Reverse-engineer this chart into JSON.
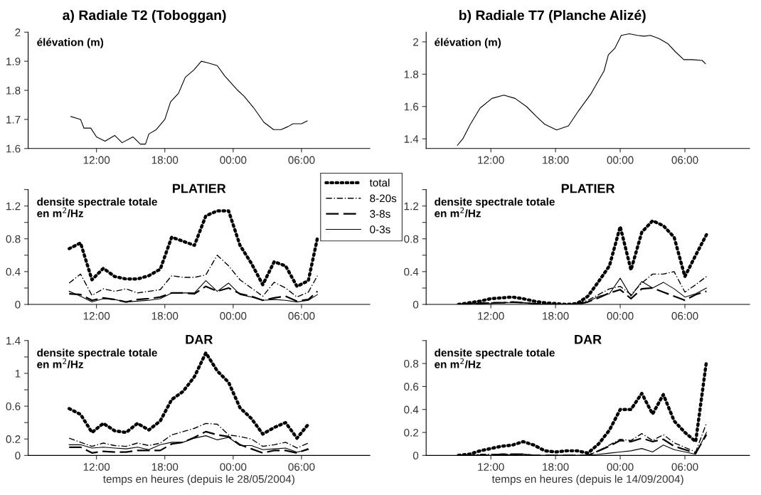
{
  "chart_data": [
    {
      "type": "line",
      "title": "a) Radiale T2 (Toboggan)",
      "ylabel": "élévation (m)",
      "xlim": [
        "2004-05-28T06:00",
        "2004-05-29T12:00"
      ],
      "ylim": [
        1.6,
        2
      ],
      "xticks": [
        {
          "value": "2004-05-28T12:00",
          "label": "12:00"
        },
        {
          "value": "2004-05-28T18:00",
          "label": "18:00"
        },
        {
          "value": "2004-05-29T00:00",
          "label": "00:00"
        },
        {
          "value": "2004-05-29T06:00",
          "label": "06:00"
        }
      ],
      "yticks": [
        1.6,
        1.7,
        1.8,
        1.9,
        2
      ],
      "series": [
        {
          "color": "#000000",
          "line_style": "solid",
          "x": [
            "2004-05-28T09:45",
            "2004-05-28T10:36",
            "2004-05-28T10:54",
            "2004-05-28T11:30",
            "2004-05-28T12:00",
            "2004-05-28T12:45",
            "2004-05-28T13:36",
            "2004-05-28T14:15",
            "2004-05-28T15:12",
            "2004-05-28T15:51",
            "2004-05-28T16:18",
            "2004-05-28T16:36",
            "2004-05-28T17:15",
            "2004-05-28T18:00",
            "2004-05-28T18:30",
            "2004-05-28T19:12",
            "2004-05-28T19:48",
            "2004-05-28T20:33",
            "2004-05-28T21:12",
            "2004-05-28T21:45",
            "2004-05-28T22:36",
            "2004-05-28T23:15",
            "2004-05-29T00:24",
            "2004-05-29T00:57",
            "2004-05-29T01:48",
            "2004-05-29T02:42",
            "2004-05-29T03:33",
            "2004-05-29T04:12",
            "2004-05-29T04:48",
            "2004-05-29T05:15",
            "2004-05-29T06:00",
            "2004-05-29T06:30"
          ],
          "values": [
            1.71,
            1.7,
            1.67,
            1.67,
            1.64,
            1.625,
            1.645,
            1.62,
            1.64,
            1.615,
            1.615,
            1.65,
            1.665,
            1.7,
            1.76,
            1.79,
            1.845,
            1.87,
            1.9,
            1.895,
            1.885,
            1.85,
            1.8,
            1.78,
            1.74,
            1.69,
            1.665,
            1.665,
            1.675,
            1.685,
            1.685,
            1.695
          ]
        }
      ]
    },
    {
      "type": "line",
      "title": "b) Radiale T7 (Planche Alizé)",
      "ylabel": "élévation (m)",
      "xlim": [
        "2004-09-14T06:00",
        "2004-09-15T12:00"
      ],
      "ylim": [
        1.34,
        2.06
      ],
      "xticks": [
        {
          "value": "2004-09-14T12:00",
          "label": "12:00"
        },
        {
          "value": "2004-09-14T18:00",
          "label": "18:00"
        },
        {
          "value": "2004-09-15T00:00",
          "label": "00:00"
        },
        {
          "value": "2004-09-15T06:00",
          "label": "06:00"
        }
      ],
      "yticks": [
        1.4,
        1.6,
        1.8,
        2
      ],
      "series": [
        {
          "color": "#000000",
          "line_style": "solid",
          "x": [
            "2004-09-14T08:54",
            "2004-09-14T09:24",
            "2004-09-14T10:06",
            "2004-09-14T11:00",
            "2004-09-14T12:06",
            "2004-09-14T13:12",
            "2004-09-14T14:15",
            "2004-09-14T15:18",
            "2004-09-14T16:12",
            "2004-09-14T17:00",
            "2004-09-14T18:06",
            "2004-09-14T19:12",
            "2004-09-14T20:06",
            "2004-09-14T21:18",
            "2004-09-14T22:30",
            "2004-09-14T22:54",
            "2004-09-14T23:30",
            "2004-09-15T00:06",
            "2004-09-15T00:51",
            "2004-09-15T01:36",
            "2004-09-15T02:12",
            "2004-09-15T02:48",
            "2004-09-15T03:36",
            "2004-09-15T04:24",
            "2004-09-15T05:06",
            "2004-09-15T05:54",
            "2004-09-15T06:42",
            "2004-09-15T07:36",
            "2004-09-15T07:54"
          ],
          "values": [
            1.36,
            1.4,
            1.49,
            1.59,
            1.65,
            1.67,
            1.65,
            1.6,
            1.54,
            1.49,
            1.455,
            1.48,
            1.57,
            1.68,
            1.82,
            1.92,
            1.96,
            2.04,
            2.05,
            2.04,
            2.035,
            2.04,
            2.02,
            1.99,
            1.94,
            1.89,
            1.89,
            1.885,
            1.865
          ]
        }
      ]
    },
    {
      "type": "line",
      "title": "PLATIER",
      "ylabel": "densite spectrale totale\nen m$^{2}$/Hz",
      "legend": "top right",
      "xlim": [
        "2004-05-28T06:00",
        "2004-05-29T12:00"
      ],
      "ylim": [
        0,
        1.4
      ],
      "xticks": [
        {
          "value": "2004-05-28T12:00",
          "label": "12:00"
        },
        {
          "value": "2004-05-28T18:00",
          "label": "18:00"
        },
        {
          "value": "2004-05-29T00:00",
          "label": "00:00"
        },
        {
          "value": "2004-05-29T06:00",
          "label": "06:00"
        }
      ],
      "yticks": [
        0,
        {
          "value": 0.2,
          "label": null
        },
        0.4,
        {
          "value": 0.6,
          "label": null
        },
        0.8,
        {
          "value": 1.0,
          "label": null
        },
        1.2,
        {
          "value": 1.4,
          "label": null
        }
      ],
      "x": [
        "2004-05-28T09:36",
        "2004-05-28T10:36",
        "2004-05-28T11:36",
        "2004-05-28T12:36",
        "2004-05-28T13:36",
        "2004-05-28T14:36",
        "2004-05-28T15:36",
        "2004-05-28T16:36",
        "2004-05-28T17:36",
        "2004-05-28T18:36",
        "2004-05-28T19:36",
        "2004-05-28T20:36",
        "2004-05-28T21:36",
        "2004-05-28T22:36",
        "2004-05-28T23:36",
        "2004-05-29T00:36",
        "2004-05-29T01:36",
        "2004-05-29T02:36",
        "2004-05-29T03:36",
        "2004-05-29T04:36",
        "2004-05-29T05:36",
        "2004-05-29T06:36",
        "2004-05-29T07:24"
      ],
      "series": [
        {
          "name": "total",
          "color": "#000000",
          "line_style": "dotted",
          "values": [
            0.68,
            0.75,
            0.3,
            0.44,
            0.34,
            0.31,
            0.31,
            0.35,
            0.43,
            0.82,
            0.77,
            0.72,
            1.08,
            1.14,
            1.14,
            0.72,
            0.5,
            0.24,
            0.52,
            0.47,
            0.22,
            0.29,
            0.81
          ]
        },
        {
          "name": "8-20s",
          "color": "#000000",
          "line_style": "dashdot",
          "values": [
            0.26,
            0.37,
            0.11,
            0.19,
            0.16,
            0.19,
            0.14,
            0.16,
            0.18,
            0.35,
            0.33,
            0.33,
            0.36,
            0.6,
            0.47,
            0.3,
            0.2,
            0.1,
            0.27,
            0.2,
            0.09,
            0.15,
            0.35
          ]
        },
        {
          "name": "3-8s",
          "color": "#000000",
          "line_style": "dashed",
          "values": [
            0.13,
            0.12,
            0.05,
            0.08,
            0.06,
            0.03,
            0.06,
            0.07,
            0.09,
            0.14,
            0.14,
            0.13,
            0.22,
            0.16,
            0.2,
            0.13,
            0.1,
            0.05,
            0.08,
            0.1,
            0.04,
            0.06,
            0.16
          ]
        },
        {
          "name": "0-3s",
          "color": "#000000",
          "line_style": "solid",
          "values": [
            0.16,
            0.1,
            0.03,
            0.07,
            0.06,
            0.03,
            0.04,
            0.05,
            0.07,
            0.14,
            0.14,
            0.14,
            0.29,
            0.16,
            0.26,
            0.12,
            0.09,
            0.05,
            0.06,
            0.05,
            0.03,
            0.05,
            0.12
          ]
        }
      ]
    },
    {
      "type": "line",
      "title": "PLATIER",
      "ylabel": "densite spectrale totale\nen m$^{2}$/Hz",
      "xlim": [
        "2004-09-14T06:00",
        "2004-09-15T12:00"
      ],
      "ylim": [
        0,
        1.4
      ],
      "xticks": [
        {
          "value": "2004-09-14T12:00",
          "label": "12:00"
        },
        {
          "value": "2004-09-14T18:00",
          "label": "18:00"
        },
        {
          "value": "2004-09-15T00:00",
          "label": "00:00"
        },
        {
          "value": "2004-09-15T06:00",
          "label": "06:00"
        }
      ],
      "yticks": [
        0,
        {
          "value": 0.2,
          "label": null
        },
        0.4,
        {
          "value": 0.6,
          "label": null
        },
        0.8,
        {
          "value": 1.0,
          "label": null
        },
        1.2,
        {
          "value": 1.4,
          "label": null
        }
      ],
      "x": [
        "2004-09-14T09:00",
        "2004-09-14T10:00",
        "2004-09-14T11:00",
        "2004-09-14T12:00",
        "2004-09-14T13:00",
        "2004-09-14T14:00",
        "2004-09-14T15:00",
        "2004-09-14T16:00",
        "2004-09-14T17:00",
        "2004-09-14T18:00",
        "2004-09-14T19:00",
        "2004-09-14T20:00",
        "2004-09-14T21:00",
        "2004-09-14T22:00",
        "2004-09-14T23:00",
        "2004-09-15T00:00",
        "2004-09-15T01:00",
        "2004-09-15T02:00",
        "2004-09-15T03:00",
        "2004-09-15T04:00",
        "2004-09-15T05:00",
        "2004-09-15T06:00",
        "2004-09-15T07:00",
        "2004-09-15T08:00"
      ],
      "series": [
        {
          "color": "#000000",
          "line_style": "dotted",
          "values": [
            0,
            0.02,
            0.04,
            0.07,
            0.08,
            0.09,
            0.07,
            0.04,
            0.02,
            0.01,
            0,
            0.01,
            0.1,
            0.28,
            0.47,
            0.95,
            0.42,
            0.88,
            1.02,
            0.96,
            0.82,
            0.34,
            0.6,
            0.85
          ]
        },
        {
          "color": "#000000",
          "line_style": "dashdot",
          "values": [
            0,
            0.01,
            0.02,
            0.02,
            0.02,
            0.03,
            0.02,
            0.01,
            0.01,
            0,
            0,
            0.01,
            0.05,
            0.12,
            0.19,
            0.22,
            0.12,
            0.26,
            0.37,
            0.37,
            0.4,
            0.15,
            0.24,
            0.34
          ]
        },
        {
          "color": "#000000",
          "line_style": "dashed",
          "values": [
            0,
            0.01,
            0.01,
            0.02,
            0.02,
            0.03,
            0.02,
            0.01,
            0,
            0,
            0,
            0,
            0.03,
            0.08,
            0.14,
            0.18,
            0.07,
            0.19,
            0.2,
            0.15,
            0.1,
            0.05,
            0.12,
            0.16
          ]
        },
        {
          "color": "#000000",
          "line_style": "solid",
          "values": [
            0,
            0.01,
            0.01,
            0.01,
            0.02,
            0.02,
            0.02,
            0.01,
            0,
            0,
            0,
            0.01,
            0.03,
            0.1,
            0.13,
            0.32,
            0.1,
            0.28,
            0.2,
            0.27,
            0.19,
            0.09,
            0.13,
            0.2
          ]
        }
      ]
    },
    {
      "type": "line",
      "title": "DAR",
      "ylabel": "densite spectrale totale\nen m$^{2}$/Hz",
      "xlabel": "temps en heures (depuis le 28/05/2004)",
      "xlim": [
        "2004-05-28T06:00",
        "2004-05-29T12:00"
      ],
      "ylim": [
        0,
        1.4
      ],
      "xticks": [
        {
          "value": "2004-05-28T12:00",
          "label": "12:00"
        },
        {
          "value": "2004-05-28T18:00",
          "label": "18:00"
        },
        {
          "value": "2004-05-29T00:00",
          "label": "00:00"
        },
        {
          "value": "2004-05-29T06:00",
          "label": "06:00"
        }
      ],
      "yticks": [
        0,
        0.2,
        {
          "value": 0.4,
          "label": null
        },
        0.6,
        {
          "value": 0.8,
          "label": null
        },
        1,
        {
          "value": 1.2,
          "label": null
        },
        1.4
      ],
      "x": [
        "2004-05-28T09:36",
        "2004-05-28T10:36",
        "2004-05-28T11:36",
        "2004-05-28T12:36",
        "2004-05-28T13:36",
        "2004-05-28T14:36",
        "2004-05-28T15:36",
        "2004-05-28T16:36",
        "2004-05-28T17:36",
        "2004-05-28T18:36",
        "2004-05-28T19:36",
        "2004-05-28T20:36",
        "2004-05-28T21:36",
        "2004-05-28T22:36",
        "2004-05-28T23:36",
        "2004-05-29T00:36",
        "2004-05-29T01:36",
        "2004-05-29T02:36",
        "2004-05-29T03:36",
        "2004-05-29T04:36",
        "2004-05-29T05:36",
        "2004-05-29T06:36"
      ],
      "series": [
        {
          "color": "#000000",
          "line_style": "dotted",
          "values": [
            0.57,
            0.5,
            0.28,
            0.39,
            0.3,
            0.28,
            0.39,
            0.31,
            0.42,
            0.68,
            0.78,
            0.96,
            1.25,
            1.03,
            0.89,
            0.58,
            0.45,
            0.26,
            0.34,
            0.4,
            0.21,
            0.38
          ]
        },
        {
          "color": "#000000",
          "line_style": "dashdot",
          "values": [
            0.21,
            0.16,
            0.11,
            0.15,
            0.12,
            0.11,
            0.15,
            0.12,
            0.15,
            0.25,
            0.29,
            0.33,
            0.39,
            0.38,
            0.25,
            0.23,
            0.2,
            0.11,
            0.13,
            0.16,
            0.09,
            0.15
          ]
        },
        {
          "color": "#000000",
          "line_style": "dashed",
          "values": [
            0.1,
            0.1,
            0.03,
            0.05,
            0.04,
            0.04,
            0.06,
            0.06,
            0.06,
            0.14,
            0.16,
            0.22,
            0.29,
            0.25,
            0.23,
            0.13,
            0.08,
            0.03,
            0.06,
            0.06,
            0.03,
            0.08
          ]
        },
        {
          "color": "#000000",
          "line_style": "solid",
          "values": [
            0.13,
            0.13,
            0.09,
            0.1,
            0.09,
            0.08,
            0.1,
            0.07,
            0.13,
            0.16,
            0.16,
            0.21,
            0.24,
            0.19,
            0.22,
            0.12,
            0.12,
            0.07,
            0.08,
            0.09,
            0.04,
            0.07
          ]
        }
      ]
    },
    {
      "type": "line",
      "title": "DAR",
      "ylabel": "densite spectrale totale\nen m$^{2}$/Hz",
      "xlabel": "temps en heures (depuis le 14/09/2004)",
      "xlim": [
        "2004-09-14T06:00",
        "2004-09-15T12:00"
      ],
      "ylim": [
        0,
        1.0
      ],
      "xticks": [
        {
          "value": "2004-09-14T12:00",
          "label": "12:00"
        },
        {
          "value": "2004-09-14T18:00",
          "label": "18:00"
        },
        {
          "value": "2004-09-15T00:00",
          "label": "00:00"
        },
        {
          "value": "2004-09-15T06:00",
          "label": "06:00"
        }
      ],
      "yticks": [
        0,
        0.2,
        0.4,
        0.6,
        0.8,
        {
          "value": 1.0,
          "label": null
        }
      ],
      "x": [
        "2004-09-14T09:00",
        "2004-09-14T10:00",
        "2004-09-14T11:00",
        "2004-09-14T12:00",
        "2004-09-14T13:00",
        "2004-09-14T14:00",
        "2004-09-14T15:00",
        "2004-09-14T16:00",
        "2004-09-14T17:00",
        "2004-09-14T18:00",
        "2004-09-14T19:00",
        "2004-09-14T20:00",
        "2004-09-14T21:00",
        "2004-09-14T22:00",
        "2004-09-14T23:00",
        "2004-09-15T00:00",
        "2004-09-15T01:00",
        "2004-09-15T02:00",
        "2004-09-15T03:00",
        "2004-09-15T04:00",
        "2004-09-15T05:00",
        "2004-09-15T06:00",
        "2004-09-15T07:00",
        "2004-09-15T08:00"
      ],
      "series": [
        {
          "color": "#000000",
          "line_style": "dotted",
          "values": [
            0,
            0.01,
            0.04,
            0.06,
            0.08,
            0.09,
            0.12,
            0.09,
            0.04,
            0.03,
            0.04,
            0.04,
            0.02,
            0.1,
            0.22,
            0.4,
            0.4,
            0.54,
            0.36,
            0.53,
            0.3,
            0.2,
            0.12,
            0.82
          ]
        },
        {
          "color": "#000000",
          "line_style": "dashdot",
          "values": [
            0,
            0,
            0.01,
            0.01,
            0.01,
            0.01,
            0.01,
            0,
            0,
            0,
            0,
            0,
            0,
            0.04,
            0.09,
            0.14,
            0.13,
            0.19,
            0.13,
            0.18,
            0.11,
            0.07,
            0.03,
            0.28
          ]
        },
        {
          "color": "#000000",
          "line_style": "dashed",
          "values": [
            0,
            0,
            0,
            0,
            0.01,
            0.01,
            0.01,
            0,
            0,
            0,
            0,
            0,
            0,
            0.04,
            0.08,
            0.13,
            0.12,
            0.15,
            0.12,
            0.14,
            0.08,
            0.05,
            0.02,
            0.18
          ]
        },
        {
          "color": "#000000",
          "line_style": "solid",
          "values": [
            0,
            0,
            0,
            0,
            0,
            0.01,
            0.01,
            0,
            0,
            0,
            0,
            0,
            0,
            0.01,
            0.02,
            0.03,
            0.04,
            0.06,
            0.03,
            0.09,
            0.05,
            0.03,
            0.01,
            0.2
          ]
        }
      ]
    }
  ]
}
